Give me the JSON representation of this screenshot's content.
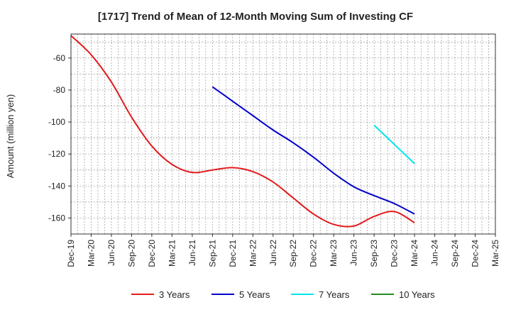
{
  "chart_data": {
    "type": "line",
    "title": "[1717]  Trend of Mean of 12-Month Moving Sum of Investing CF",
    "xlabel": "",
    "ylabel": "Amount (million yen)",
    "ylim": [
      -170,
      -45
    ],
    "yticks": [
      -60,
      -80,
      -100,
      -120,
      -140,
      -160
    ],
    "grid": true,
    "legend_position": "bottom",
    "categories": [
      "Dec-19",
      "Mar-20",
      "Jun-20",
      "Sep-20",
      "Dec-20",
      "Mar-21",
      "Jun-21",
      "Sep-21",
      "Dec-21",
      "Mar-22",
      "Jun-22",
      "Sep-22",
      "Dec-22",
      "Mar-23",
      "Jun-23",
      "Sep-23",
      "Dec-23",
      "Mar-24",
      "Jun-24",
      "Sep-24",
      "Dec-24",
      "Mar-25"
    ],
    "series": [
      {
        "name": "3 Years",
        "color": "#e31a1c",
        "points": [
          [
            "Dec-19",
            -46
          ],
          [
            "Mar-20",
            -58
          ],
          [
            "Jun-20",
            -75
          ],
          [
            "Sep-20",
            -97
          ],
          [
            "Dec-20",
            -115
          ],
          [
            "Mar-21",
            -126.5
          ],
          [
            "Jun-21",
            -131.5
          ],
          [
            "Sep-21",
            -130
          ],
          [
            "Dec-21",
            -128.5
          ],
          [
            "Mar-22",
            -131
          ],
          [
            "Jun-22",
            -137.5
          ],
          [
            "Sep-22",
            -147.5
          ],
          [
            "Dec-22",
            -157.5
          ],
          [
            "Mar-23",
            -164
          ],
          [
            "Jun-23",
            -165
          ],
          [
            "Sep-23",
            -159
          ],
          [
            "Dec-23",
            -156
          ],
          [
            "Mar-24",
            -163
          ]
        ]
      },
      {
        "name": "5 Years",
        "color": "#0000cc",
        "points": [
          [
            "Sep-21",
            -78
          ],
          [
            "Dec-21",
            -87
          ],
          [
            "Mar-22",
            -96
          ],
          [
            "Jun-22",
            -105
          ],
          [
            "Sep-22",
            -113
          ],
          [
            "Dec-22",
            -122
          ],
          [
            "Mar-23",
            -132
          ],
          [
            "Jun-23",
            -140.5
          ],
          [
            "Sep-23",
            -146
          ],
          [
            "Dec-23",
            -151
          ],
          [
            "Mar-24",
            -157.5
          ]
        ]
      },
      {
        "name": "7 Years",
        "color": "#00e5ee",
        "points": [
          [
            "Sep-23",
            -102
          ],
          [
            "Dec-23",
            -114
          ],
          [
            "Mar-24",
            -126
          ]
        ]
      },
      {
        "name": "10 Years",
        "color": "#228b22",
        "points": []
      }
    ]
  }
}
